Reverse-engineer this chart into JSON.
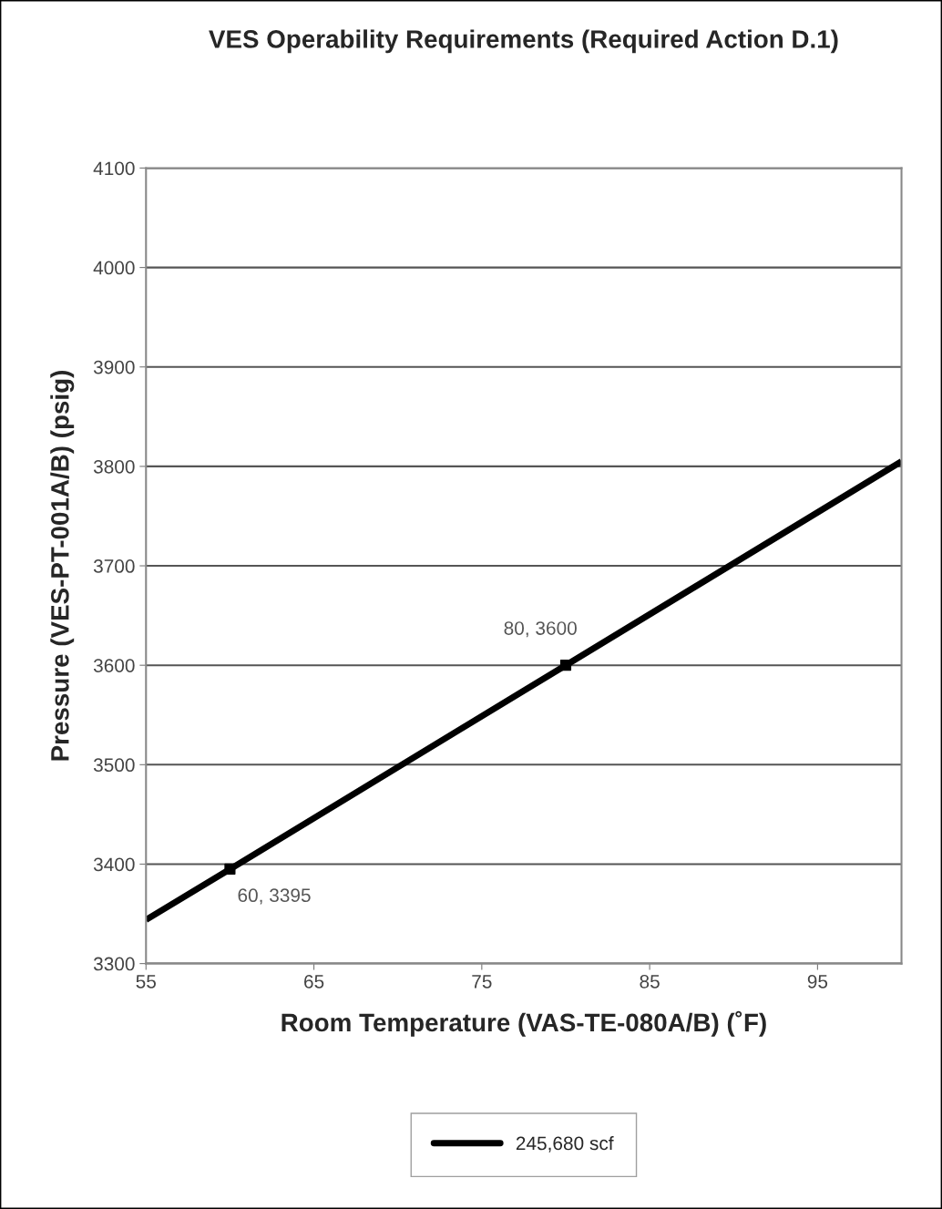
{
  "chart_data": {
    "type": "line",
    "title": "VES Operability Requirements (Required Action D.1)",
    "xlabel": "Room Temperature (VAS-TE-080A/B) (˚F)",
    "ylabel": "Pressure (VES-PT-001A/B) (psig)",
    "series": [
      {
        "name": "245,680 scf",
        "color": "#000000",
        "x": [
          55,
          60,
          80,
          100
        ],
        "values": [
          3344,
          3395,
          3600,
          3805
        ],
        "marker": "none"
      },
      {
        "type": "scatter",
        "color": "#000000",
        "x": [
          60,
          80
        ],
        "values": [
          3395,
          3600
        ],
        "marker": "square"
      }
    ],
    "annotations": [
      {
        "text": "80, 3600",
        "x": 80,
        "y": 3600
      },
      {
        "text": "60, 3395",
        "x": 60,
        "y": 3395
      }
    ],
    "xlim": [
      55,
      100
    ],
    "xticks": [
      55,
      65,
      75,
      85,
      95
    ],
    "ylim": [
      3300,
      4100
    ],
    "yticks": [
      3300,
      3400,
      3500,
      3600,
      3700,
      3800,
      3900,
      4000,
      4100
    ],
    "grid": "y",
    "legend": "bottom"
  }
}
